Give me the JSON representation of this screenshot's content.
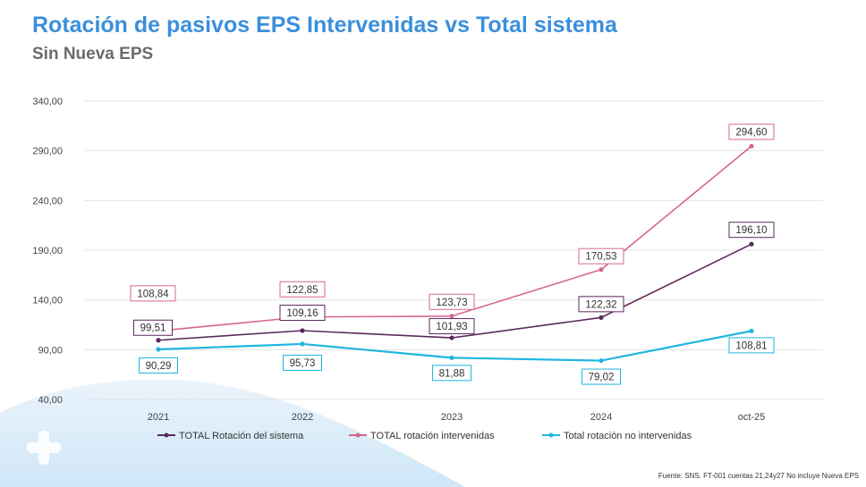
{
  "header": {
    "title": "Rotación de pasivos EPS Intervenidas vs Total sistema",
    "subtitle": "Sin Nueva EPS"
  },
  "footer": {
    "source": "Fuente: SNS. FT-001 cuentas 21,24y27 No incluye Nueva EPS"
  },
  "chart_data": {
    "type": "line",
    "categories": [
      "2021",
      "2022",
      "2023",
      "2024",
      "oct-25"
    ],
    "y_ticks": [
      "40,00",
      "90,00",
      "140,00",
      "190,00",
      "240,00",
      "290,00",
      "340,00"
    ],
    "ylim": [
      40,
      340
    ],
    "grid": true,
    "legend_position": "bottom",
    "series": [
      {
        "name": "TOTAL Rotación del sistema",
        "color": "#5b2a5c",
        "values": [
          99.51,
          109.16,
          101.93,
          122.32,
          196.1
        ],
        "labels": [
          "99,51",
          "109,16",
          "101,93",
          "122,32",
          "196,10"
        ]
      },
      {
        "name": "TOTAL rotación intervenidas",
        "color": "#d6668f",
        "values": [
          108.84,
          122.85,
          123.73,
          170.53,
          294.6
        ],
        "labels": [
          "108,84",
          "122,85",
          "123,73",
          "170,53",
          "294,60"
        ]
      },
      {
        "name": "Total rotación no intervenidas",
        "color": "#1fb6e0",
        "values": [
          90.29,
          95.73,
          81.88,
          79.02,
          108.81
        ],
        "labels": [
          "90,29",
          "95,73",
          "81,88",
          "79,02",
          "108,81"
        ]
      }
    ]
  }
}
